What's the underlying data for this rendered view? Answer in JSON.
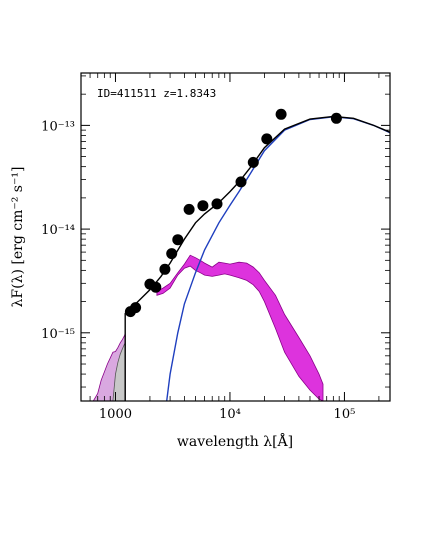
{
  "chart_data": {
    "type": "scatter",
    "title": "",
    "annotation": "ID=411511 z=1.8343",
    "xlabel": "wavelength λ[Å]",
    "ylabel": "λF(λ) [erg cm⁻² s⁻¹]",
    "xscale": "log",
    "yscale": "log",
    "xlim": [
      500,
      250000
    ],
    "ylim": [
      2.2e-16,
      3.2e-13
    ],
    "x_ticks": [
      {
        "value": 1000,
        "label": "1000"
      },
      {
        "value": 10000,
        "label": "10⁴"
      },
      {
        "value": 100000,
        "label": "10⁵"
      }
    ],
    "y_ticks": [
      {
        "value": 1e-15,
        "label": "10⁻¹⁵"
      },
      {
        "value": 1e-14,
        "label": "10⁻¹⁴"
      },
      {
        "value": 1e-13,
        "label": "10⁻¹³"
      }
    ],
    "grid": false,
    "legend": "none",
    "colors": {
      "points": "#000000",
      "total_model": "#000000",
      "galaxy_model": "#1f3fbf",
      "agn_band": "#dd33dd",
      "agn_band_edge": "#8a008a",
      "grey_fill": "#c8c8c8",
      "lilac_fill": "#d9a8e0"
    },
    "series": [
      {
        "kind": "points",
        "x": [
          1350,
          1500,
          2000,
          2250,
          2700,
          3100,
          3500,
          4400,
          5800,
          7700,
          12500,
          16000,
          21000,
          28000,
          85000
        ],
        "y": [
          1.6e-15,
          1.75e-15,
          2.95e-15,
          2.75e-15,
          4.1e-15,
          5.8e-15,
          7.9e-15,
          1.55e-14,
          1.68e-14,
          1.75e-14,
          2.85e-14,
          4.4e-14,
          7.4e-14,
          1.28e-13,
          1.17e-13
        ]
      },
      {
        "kind": "line",
        "x": [
          1216,
          1300,
          1500,
          2000,
          2500,
          3000,
          4000,
          5000,
          6000,
          8000,
          10000,
          12000,
          15000,
          20000,
          30000,
          50000,
          80000,
          120000,
          180000,
          250000
        ],
        "y": [
          1.55e-15,
          1.65e-15,
          1.9e-15,
          2.6e-15,
          3.5e-15,
          4.7e-15,
          8e-15,
          1.15e-14,
          1.4e-14,
          1.8e-14,
          2.3e-14,
          2.85e-14,
          3.9e-14,
          6.1e-14,
          9.2e-14,
          1.15e-13,
          1.22e-13,
          1.17e-13,
          1e-13,
          8.6e-14
        ]
      },
      {
        "kind": "line",
        "x": [
          2800,
          3000,
          3500,
          4000,
          5000,
          6000,
          8000,
          10000,
          12000,
          15000,
          20000,
          30000,
          50000,
          80000,
          120000,
          180000,
          250000
        ],
        "y": [
          2.2e-16,
          4e-16,
          1e-15,
          1.9e-15,
          3.8e-15,
          6.3e-15,
          1.15e-14,
          1.7e-14,
          2.3e-14,
          3.4e-14,
          5.7e-14,
          9e-14,
          1.14e-13,
          1.21e-13,
          1.16e-13,
          1e-13,
          8.5e-14
        ]
      },
      {
        "kind": "band",
        "x": [
          2300,
          2600,
          3000,
          3500,
          4000,
          4500,
          5000,
          5500,
          6000,
          7000,
          8000,
          9000,
          10000,
          12000,
          14000,
          16000,
          18000,
          20000,
          25000,
          30000,
          40000,
          50000,
          60000,
          65000
        ],
        "y_low": [
          2.3e-15,
          2.4e-15,
          2.7e-15,
          3.6e-15,
          4.2e-15,
          4.4e-15,
          4e-15,
          3.8e-15,
          3.6e-15,
          3.5e-15,
          3.6e-15,
          3.7e-15,
          3.6e-15,
          3.4e-15,
          3.2e-15,
          2.9e-15,
          2.5e-15,
          2e-15,
          1.1e-15,
          6.5e-16,
          3.8e-16,
          2.8e-16,
          2.3e-16,
          2.2e-16
        ],
        "y_high": [
          2.5e-15,
          2.7e-15,
          3e-15,
          3.8e-15,
          4.6e-15,
          5.6e-15,
          5.3e-15,
          5e-15,
          4.7e-15,
          4.3e-15,
          4.8e-15,
          4.7e-15,
          4.6e-15,
          4.8e-15,
          4.7e-15,
          4.3e-15,
          3.8e-15,
          3.2e-15,
          2.3e-15,
          1.5e-15,
          9e-16,
          6e-16,
          4e-16,
          3.2e-16
        ]
      },
      {
        "kind": "band",
        "x": [
          640,
          700,
          750,
          800,
          850,
          900,
          950,
          1000,
          1050,
          1100,
          1150,
          1200,
          1216
        ],
        "y_low": [
          2.2e-16,
          2.2e-16,
          2.2e-16,
          2.2e-16,
          2.2e-16,
          2.2e-16,
          2.2e-16,
          2.2e-16,
          2.2e-16,
          2.2e-16,
          2.2e-16,
          2.2e-16,
          2.2e-16
        ],
        "y_high": [
          2.2e-16,
          2.6e-16,
          3.5e-16,
          4.2e-16,
          5e-16,
          5.7e-16,
          6.5e-16,
          6.6e-16,
          7.2e-16,
          8e-16,
          8.6e-16,
          9.4e-16,
          1e-15
        ]
      },
      {
        "kind": "band",
        "x": [
          950,
          1000,
          1050,
          1100,
          1150,
          1200,
          1216
        ],
        "y_low": [
          2.2e-16,
          2.2e-16,
          2.2e-16,
          2.2e-16,
          2.2e-16,
          2.2e-16,
          2.2e-16
        ],
        "y_high": [
          2.2e-16,
          4e-16,
          5.2e-16,
          6.2e-16,
          7e-16,
          7.8e-16,
          8e-16
        ]
      }
    ]
  }
}
